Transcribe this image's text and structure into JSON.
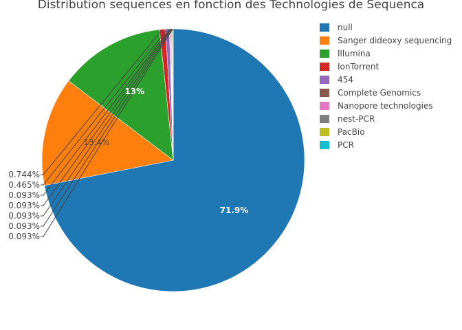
{
  "chart_data": {
    "type": "pie",
    "title": "Distribution sequences en fonction des Technologies de Sequenca",
    "labels": [
      "null",
      "Sanger dideoxy sequencing",
      "Illumina",
      "IonTorrent",
      "454",
      "Complete Genomics",
      "Nanopore technologies",
      "nest-PCR",
      "PacBio",
      "PCR"
    ],
    "values": [
      71.9,
      13.4,
      13.0,
      0.744,
      0.465,
      0.093,
      0.093,
      0.093,
      0.093,
      0.093
    ],
    "text_labels": [
      "71.9%",
      "13.4%",
      "13%",
      "0.744%",
      "0.465%",
      "0.093%",
      "0.093%",
      "0.093%",
      "0.093%",
      "0.093%"
    ],
    "colors": [
      "#1f77b4",
      "#ff7f0e",
      "#2ca02c",
      "#d62728",
      "#9467bd",
      "#8c564b",
      "#e377c2",
      "#7f7f7f",
      "#bcbd22",
      "#17becf"
    ],
    "direction": "clockwise",
    "start": "top",
    "legend_position": "top-right"
  }
}
